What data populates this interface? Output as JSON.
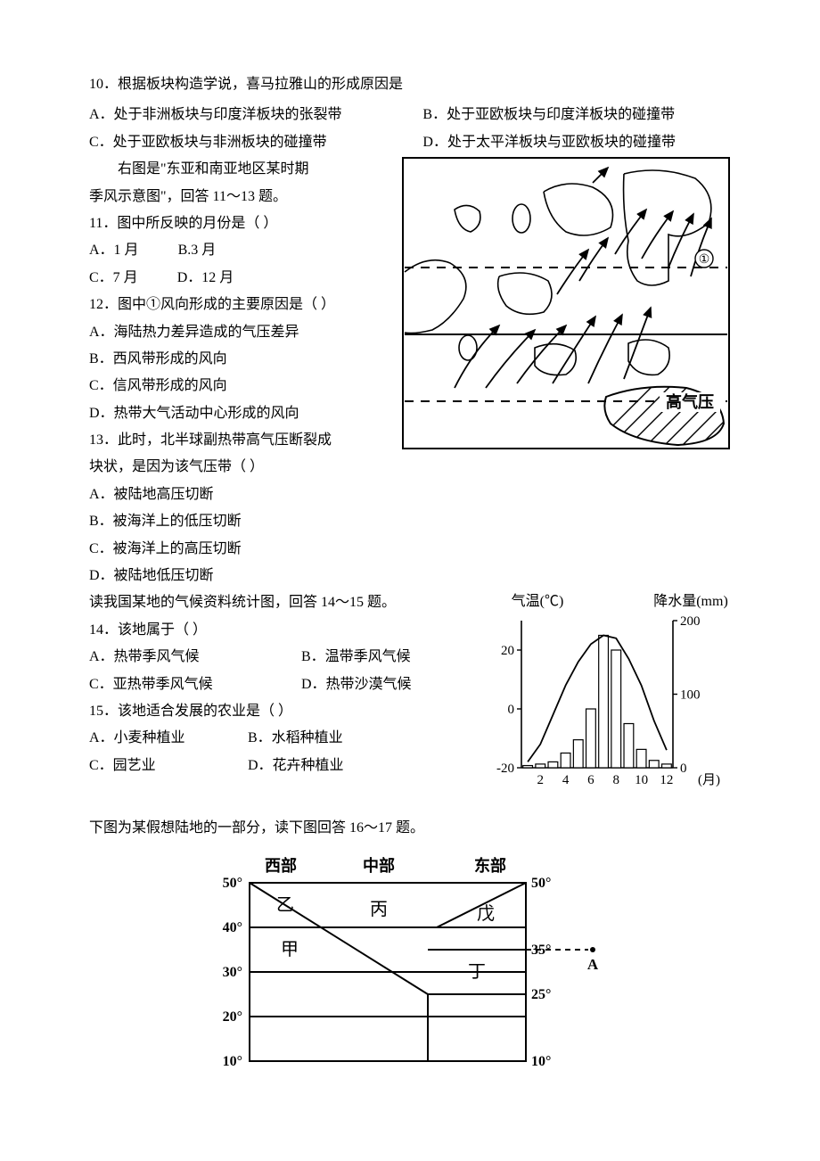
{
  "q10": {
    "stem": "10．根据板块构造学说，喜马拉雅山的形成原因是",
    "A": "A．处于非洲板块与印度洋板块的张裂带",
    "B": "B．处于亚欧板块与印度洋板块的碰撞带",
    "C": "C．处于亚欧板块与非洲板块的碰撞带",
    "D": "D．处于太平洋板块与亚欧板块的碰撞带"
  },
  "intro1": {
    "line1": "右图是\"东亚和南亚地区某时期",
    "line2": "季风示意图\"，回答 11～13 题。"
  },
  "q11": {
    "stem": "11．图中所反映的月份是（    ）",
    "A": "A．1 月",
    "B": "B.3 月",
    "C": "C．7 月",
    "D": "D．12 月"
  },
  "q12": {
    "stem": "12．图中①风向形成的主要原因是（    ）",
    "A": "A．海陆热力差异造成的气压差异",
    "B": "B．西风带形成的风向",
    "C": "C．信风带形成的风向",
    "D": "D．热带大气活动中心形成的风向"
  },
  "q13": {
    "stem1": "13．此时，北半球副热带高气压断裂成",
    "stem2": "块状，是因为该气压带（    ）",
    "A": "A．被陆地高压切断",
    "B": "B．被海洋上的低压切断",
    "C": "C．被海洋上的高压切断",
    "D": "D．被陆地低压切断"
  },
  "intro2": "读我国某地的气候资料统计图，回答 14～15 题。",
  "q14": {
    "stem": "14．该地属于（    ）",
    "A": "A．热带季风气候",
    "B": "B．温带季风气候",
    "C": "C．亚热带季风气候",
    "D": "D．热带沙漠气候"
  },
  "q15": {
    "stem": "15．该地适合发展的农业是（    ）",
    "A": "A．小麦种植业",
    "B": "B．水稻种植业",
    "C": "C．园艺业",
    "D": "D．花卉种植业"
  },
  "intro3": "下图为某假想陆地的一部分，读下图回答 16～17 题。",
  "monsoonMap": {
    "label_circle1": "①",
    "label_highpressure": "高气压",
    "border_color": "#000000",
    "background": "#ffffff",
    "stroke_width": 1.6
  },
  "climateChart": {
    "title_left": "气温(℃)",
    "title_right": "降水量(mm)",
    "y_temp_ticks": [
      "-20",
      "0",
      "20"
    ],
    "y_precip_ticks": [
      "0",
      "100",
      "200"
    ],
    "x_ticks": [
      "2",
      "4",
      "6",
      "8",
      "10",
      "12"
    ],
    "x_unit": "(月)",
    "temp_values_c": [
      -18,
      -12,
      -2,
      8,
      16,
      22,
      25,
      24,
      17,
      8,
      -4,
      -14
    ],
    "precip_values_mm": [
      3,
      5,
      8,
      20,
      38,
      80,
      180,
      160,
      60,
      25,
      10,
      5
    ],
    "stroke_color": "#000000",
    "bar_fill": "#ffffff",
    "bg": "#ffffff"
  },
  "landMap": {
    "top_labels": {
      "west": "西部",
      "mid": "中部",
      "east": "东部"
    },
    "left_lats": [
      "50°",
      "40°",
      "30°",
      "20°",
      "10°"
    ],
    "right_lats": [
      "50°",
      "35°",
      "25°",
      "10°"
    ],
    "region_labels": {
      "jia": "甲",
      "yi": "乙",
      "bing": "丙",
      "ding": "丁",
      "wu": "戊"
    },
    "pointA": "A",
    "stroke_color": "#000000",
    "stroke_width": 2
  }
}
